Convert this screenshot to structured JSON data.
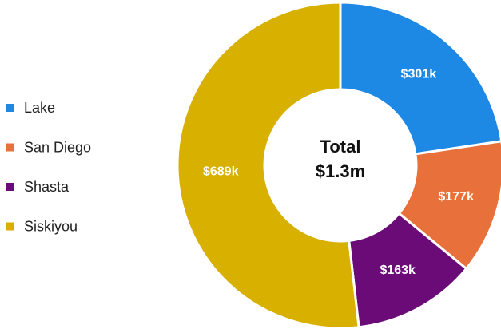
{
  "chart_data": {
    "type": "donut",
    "categories": [
      "Lake",
      "San Diego",
      "Shasta",
      "Siskiyou"
    ],
    "values": [
      301,
      177,
      163,
      689
    ],
    "value_labels": [
      "$301k",
      "$177k",
      "$163k",
      "$689k"
    ],
    "colors": [
      "#1e88e5",
      "#e8703a",
      "#6a0b78",
      "#d8b000"
    ],
    "center_title": "Total",
    "center_value": "$1.3m",
    "legend": "left"
  }
}
